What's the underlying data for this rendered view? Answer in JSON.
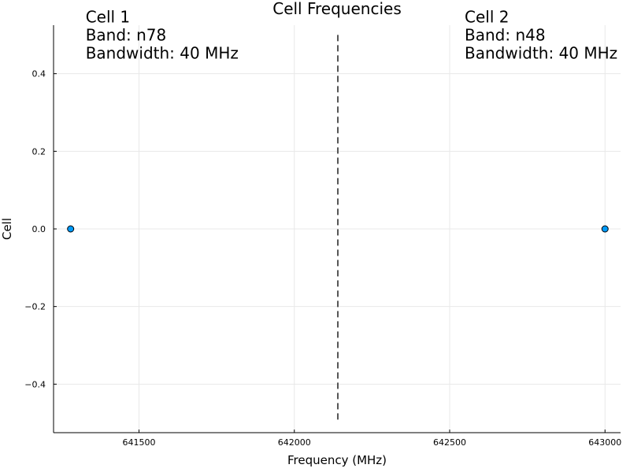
{
  "chart_data": {
    "type": "scatter",
    "title": "Cell Frequencies",
    "xlabel": "Frequency (MHz)",
    "ylabel": "Cell",
    "xlim": [
      641225,
      643050
    ],
    "ylim": [
      -0.525,
      0.525
    ],
    "xticks": [
      641500,
      642000,
      642500,
      643000
    ],
    "xtick_labels": [
      "641500",
      "642000",
      "642500",
      "643000"
    ],
    "yticks": [
      -0.4,
      -0.2,
      0.0,
      0.2,
      0.4
    ],
    "ytick_labels": [
      "−0.4",
      "−0.2",
      "0.0",
      "0.2",
      "0.4"
    ],
    "grid": true,
    "points": [
      {
        "x": 641280,
        "y": 0.0
      },
      {
        "x": 643000,
        "y": 0.0
      }
    ],
    "marker_color": "#009AFA",
    "vline": {
      "x": 642140,
      "y0": -0.5,
      "y1": 0.5,
      "style": "dashed",
      "color": "#555555"
    },
    "annotations": [
      {
        "x": 641280,
        "y": 0.5,
        "lines": [
          "Cell 1",
          "Band: n78",
          "Bandwidth: 40 MHz"
        ]
      },
      {
        "x": 642500,
        "y": 0.5,
        "lines": [
          "Cell 2",
          "Band: n48",
          "Bandwidth: 40 MHz"
        ]
      }
    ]
  }
}
